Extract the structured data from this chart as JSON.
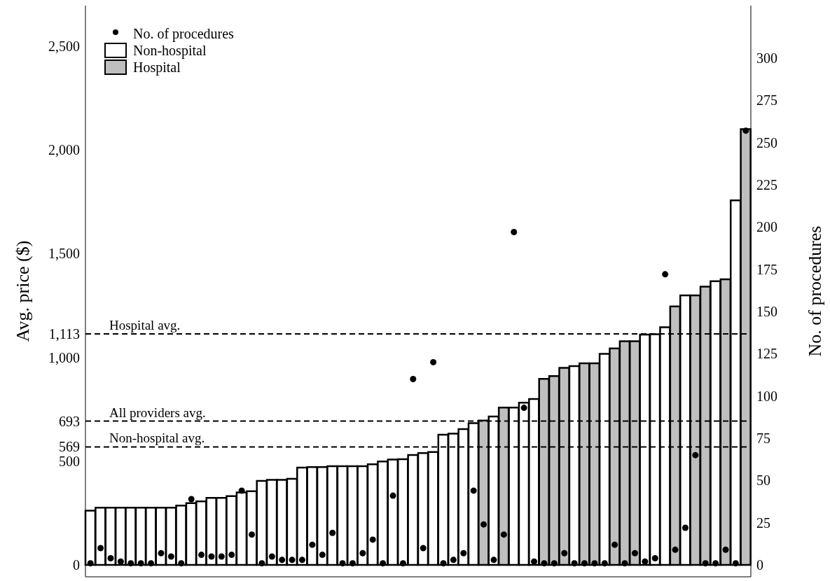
{
  "chart_data": {
    "type": "bar",
    "ylabel": "Avg. price ($)",
    "y2label": "No. of procedures",
    "categories": [
      null,
      null,
      null,
      null,
      null,
      null,
      null,
      null,
      null,
      null,
      null,
      null,
      null,
      null,
      null,
      null,
      null,
      null,
      null,
      null,
      null,
      null,
      null,
      null,
      null,
      null,
      null,
      null,
      null,
      null,
      null,
      null,
      null,
      null,
      null,
      null,
      null,
      null,
      null,
      null,
      null,
      null,
      null,
      null,
      null,
      null,
      null,
      null,
      null,
      null,
      null,
      null,
      null,
      null,
      null,
      null,
      null,
      null,
      null,
      null,
      null,
      null,
      null,
      null,
      null,
      null
    ],
    "series": [
      {
        "name": "No. of procedures",
        "type": "scatter",
        "axis": "y2",
        "color": "#000000",
        "values": [
          1,
          10,
          4,
          2,
          1,
          1,
          1,
          7,
          5,
          1,
          39,
          6,
          5,
          5,
          6,
          44,
          18,
          1,
          5,
          3,
          3,
          3,
          12,
          6,
          19,
          1,
          1,
          7,
          15,
          1,
          41,
          1,
          110,
          10,
          120,
          1,
          3,
          7,
          44,
          24,
          3,
          18,
          197,
          93,
          2,
          1,
          1,
          7,
          1,
          1,
          1,
          1,
          12,
          1,
          7,
          2,
          4,
          172,
          9,
          22,
          65,
          1,
          1,
          9,
          1,
          257
        ]
      },
      {
        "name": "Non-hospital",
        "color": "#ffffff",
        "values": [
          262,
          276,
          276,
          276,
          276,
          276,
          276,
          276,
          276,
          286,
          298,
          306,
          323,
          323,
          332,
          349,
          355,
          405,
          410,
          410,
          415,
          469,
          472,
          472,
          476,
          476,
          476,
          476,
          485,
          499,
          508,
          510,
          530,
          539,
          544,
          628,
          633,
          655,
          683,
          null,
          715,
          null,
          758,
          782,
          800,
          null,
          null,
          null,
          958,
          null,
          null,
          1017,
          null,
          null,
          null,
          1110,
          1112,
          1145,
          null,
          1299,
          null,
          null,
          1367,
          null,
          1757,
          null
        ]
      },
      {
        "name": "Hospital",
        "color": "#bfbfbf",
        "values": [
          null,
          null,
          null,
          null,
          null,
          null,
          null,
          null,
          null,
          null,
          null,
          null,
          null,
          null,
          null,
          null,
          null,
          null,
          null,
          null,
          null,
          null,
          null,
          null,
          null,
          null,
          null,
          null,
          null,
          null,
          null,
          null,
          null,
          null,
          null,
          null,
          null,
          null,
          null,
          696,
          null,
          758,
          null,
          null,
          null,
          897,
          910,
          950,
          null,
          972,
          972,
          null,
          1043,
          1078,
          1078,
          null,
          null,
          null,
          1246,
          null,
          1299,
          1341,
          null,
          1376,
          null,
          2100
        ]
      }
    ],
    "ylim": [
      -57,
      2695
    ],
    "yticks": [
      0,
      500,
      569,
      693,
      {
        "value": 1000,
        "label": "1,000"
      },
      {
        "value": 1113,
        "label": "1,113"
      },
      {
        "value": 1500,
        "label": "1,500"
      },
      {
        "value": 2000,
        "label": "2,000"
      },
      {
        "value": 2500,
        "label": "2,500"
      }
    ],
    "y2lim": [
      -7,
      331
    ],
    "y2ticks": [
      0,
      25,
      50,
      75,
      100,
      125,
      150,
      175,
      200,
      225,
      250,
      275,
      300
    ],
    "ref_lines": [
      {
        "axis": "y",
        "value": 1113,
        "label": "Hospital avg.",
        "line_style": "dashed",
        "color": "#000000"
      },
      {
        "axis": "y",
        "value": 693,
        "label": "All providers avg.",
        "line_style": "dashed",
        "color": "#000000"
      },
      {
        "axis": "y",
        "value": 569,
        "label": "Non-hospital avg.",
        "line_style": "dashed",
        "color": "#000000"
      }
    ],
    "legend": "top left",
    "grid": false,
    "marker": "circle"
  }
}
